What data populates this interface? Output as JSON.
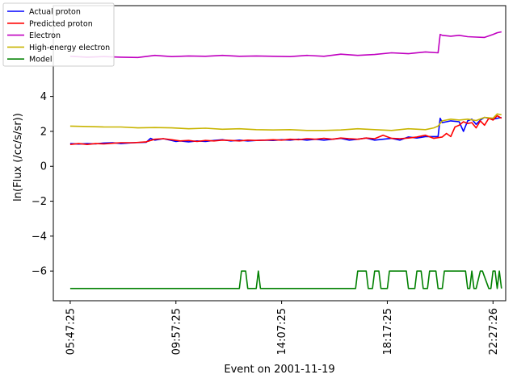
{
  "chart_data": {
    "type": "line",
    "xlabel": "Event on 2001-11-19",
    "ylabel": "ln(Flux (/cc/s/sr))",
    "x_ticks": [
      "05:47:25",
      "09:57:25",
      "14:07:25",
      "18:17:25",
      "22:27:26"
    ],
    "xlim_minutes": [
      -40,
      1030
    ],
    "ylim": [
      -7.7,
      9.2
    ],
    "y_ticks": [
      -6,
      -4,
      -2,
      0,
      2,
      4
    ],
    "legend_position": "top-left",
    "grid": false,
    "series": [
      {
        "name": "Actual proton",
        "color": "#0000ff",
        "x": [
          0,
          20,
          40,
          60,
          80,
          100,
          120,
          150,
          180,
          190,
          200,
          220,
          240,
          250,
          260,
          280,
          300,
          320,
          340,
          360,
          380,
          400,
          420,
          440,
          460,
          480,
          500,
          520,
          540,
          560,
          580,
          600,
          620,
          640,
          660,
          680,
          700,
          720,
          740,
          760,
          780,
          800,
          820,
          840,
          870,
          875,
          880,
          900,
          920,
          930,
          940,
          950,
          960,
          970,
          980,
          1000,
          1020
        ],
        "values": [
          1.3,
          1.27,
          1.3,
          1.28,
          1.33,
          1.35,
          1.3,
          1.35,
          1.38,
          1.6,
          1.5,
          1.58,
          1.48,
          1.42,
          1.45,
          1.4,
          1.45,
          1.42,
          1.48,
          1.52,
          1.45,
          1.5,
          1.45,
          1.48,
          1.5,
          1.48,
          1.52,
          1.5,
          1.55,
          1.5,
          1.55,
          1.5,
          1.55,
          1.6,
          1.5,
          1.55,
          1.62,
          1.5,
          1.55,
          1.6,
          1.5,
          1.68,
          1.62,
          1.7,
          1.7,
          2.75,
          2.5,
          2.6,
          2.55,
          2.0,
          2.6,
          2.7,
          2.4,
          2.65,
          2.8,
          2.7,
          2.8
        ]
      },
      {
        "name": "Predicted proton",
        "color": "#ff0000",
        "x": [
          0,
          20,
          40,
          60,
          80,
          100,
          120,
          150,
          180,
          200,
          220,
          240,
          260,
          280,
          300,
          320,
          340,
          360,
          380,
          400,
          420,
          440,
          460,
          480,
          500,
          520,
          540,
          560,
          580,
          600,
          620,
          640,
          660,
          680,
          700,
          720,
          740,
          760,
          780,
          800,
          820,
          840,
          860,
          880,
          890,
          900,
          910,
          920,
          930,
          940,
          950,
          960,
          970,
          980,
          990,
          1000,
          1010,
          1020
        ],
        "values": [
          1.25,
          1.3,
          1.25,
          1.3,
          1.28,
          1.32,
          1.35,
          1.35,
          1.4,
          1.55,
          1.58,
          1.52,
          1.45,
          1.48,
          1.42,
          1.48,
          1.45,
          1.5,
          1.48,
          1.45,
          1.5,
          1.48,
          1.5,
          1.52,
          1.5,
          1.55,
          1.52,
          1.58,
          1.55,
          1.6,
          1.55,
          1.62,
          1.58,
          1.55,
          1.62,
          1.58,
          1.78,
          1.6,
          1.58,
          1.62,
          1.68,
          1.78,
          1.6,
          1.68,
          1.88,
          1.7,
          2.25,
          2.35,
          2.55,
          2.45,
          2.5,
          2.2,
          2.6,
          2.35,
          2.75,
          2.65,
          2.9,
          2.75
        ]
      },
      {
        "name": "Electron",
        "color": "#c000c0",
        "x": [
          0,
          40,
          80,
          120,
          160,
          200,
          240,
          280,
          320,
          360,
          400,
          440,
          480,
          520,
          560,
          600,
          640,
          680,
          720,
          760,
          800,
          840,
          870,
          875,
          880,
          900,
          920,
          940,
          960,
          980,
          1000,
          1010,
          1020
        ],
        "values": [
          6.3,
          6.25,
          6.28,
          6.25,
          6.23,
          6.35,
          6.28,
          6.32,
          6.3,
          6.35,
          6.3,
          6.32,
          6.3,
          6.28,
          6.35,
          6.3,
          6.42,
          6.35,
          6.4,
          6.5,
          6.45,
          6.55,
          6.5,
          7.55,
          7.5,
          7.45,
          7.5,
          7.42,
          7.4,
          7.38,
          7.55,
          7.65,
          7.7
        ]
      },
      {
        "name": "High-energy electron",
        "color": "#c8b400",
        "x": [
          0,
          40,
          80,
          120,
          160,
          200,
          240,
          280,
          320,
          360,
          400,
          440,
          480,
          520,
          560,
          600,
          640,
          680,
          720,
          760,
          800,
          840,
          860,
          870,
          880,
          900,
          920,
          940,
          960,
          980,
          1000,
          1010,
          1020
        ],
        "values": [
          2.3,
          2.28,
          2.25,
          2.25,
          2.2,
          2.22,
          2.2,
          2.15,
          2.18,
          2.12,
          2.15,
          2.1,
          2.08,
          2.1,
          2.05,
          2.05,
          2.08,
          2.15,
          2.1,
          2.05,
          2.15,
          2.1,
          2.2,
          2.3,
          2.6,
          2.7,
          2.65,
          2.7,
          2.62,
          2.8,
          2.75,
          3.0,
          2.95
        ]
      },
      {
        "name": "Model",
        "color": "#008000",
        "x": [
          0,
          400,
          405,
          415,
          420,
          440,
          445,
          450,
          675,
          680,
          700,
          705,
          715,
          720,
          730,
          735,
          750,
          755,
          795,
          800,
          815,
          820,
          830,
          835,
          845,
          850,
          865,
          870,
          880,
          885,
          890,
          895,
          935,
          940,
          945,
          950,
          955,
          960,
          970,
          975,
          990,
          995,
          1000,
          1005,
          1010,
          1015,
          1020
        ],
        "values": [
          -7,
          -7,
          -6,
          -6,
          -7,
          -7,
          -6,
          -7,
          -7,
          -6,
          -6,
          -7,
          -7,
          -6,
          -6,
          -7,
          -7,
          -6,
          -6,
          -7,
          -7,
          -6,
          -6,
          -7,
          -7,
          -6,
          -6,
          -7,
          -7,
          -6,
          -6,
          -6,
          -6,
          -7,
          -7,
          -6,
          -7,
          -7,
          -6,
          -6,
          -7,
          -7,
          -6,
          -6,
          -7,
          -6,
          -7
        ]
      }
    ]
  }
}
